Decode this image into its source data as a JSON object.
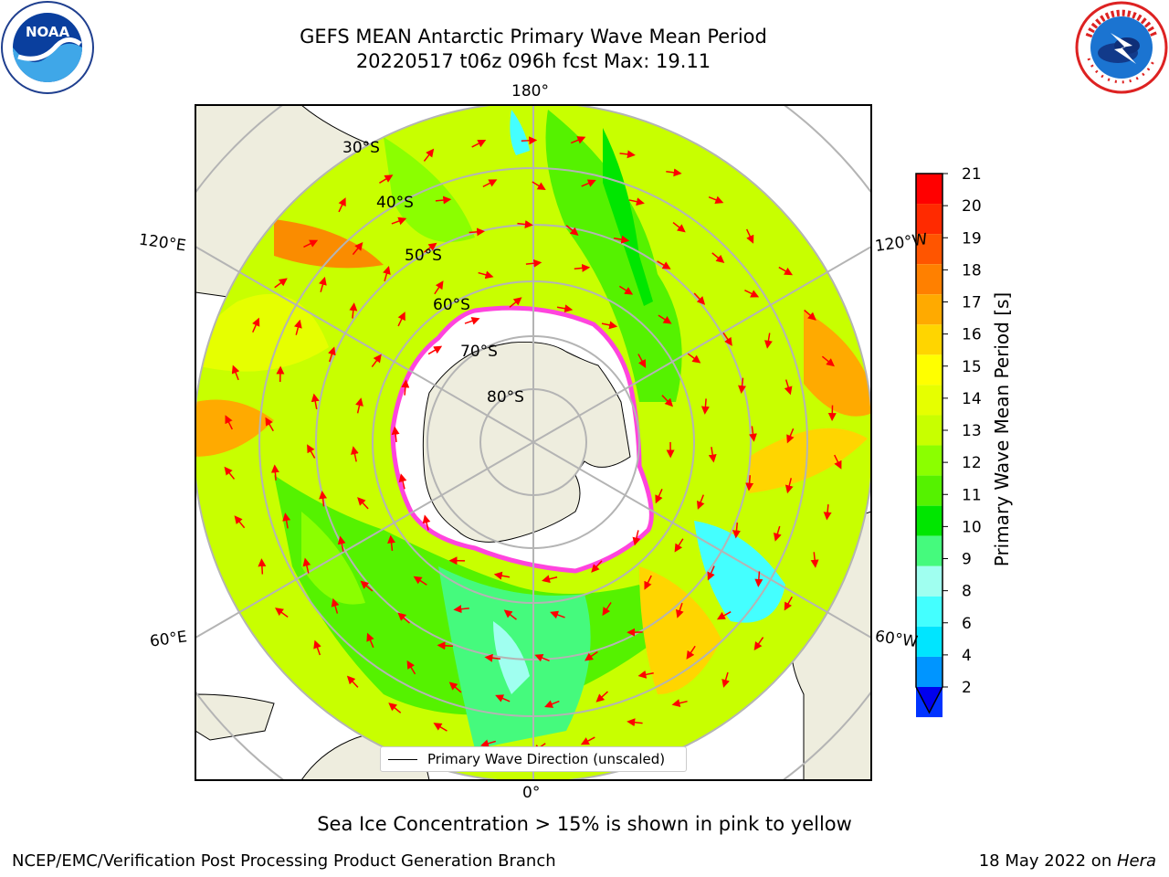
{
  "title": {
    "line1": "GEFS MEAN Antarctic Primary Wave Mean Period",
    "line2": "20220517 t06z 096h fcst   Max: 19.11"
  },
  "logos": {
    "left": "noaa-logo",
    "right": "national-weather-service-logo",
    "left_text": "NOAA",
    "right_text": "NATIONAL WEATHER SERVICE"
  },
  "map": {
    "projection": "south-polar-stereographic",
    "longitude_labels": {
      "top": "180°",
      "bottom": "0°",
      "upper_left": "120°E",
      "upper_right": "120°W",
      "lower_left": "60°E",
      "lower_right": "60°W"
    },
    "latitude_labels": [
      "30°S",
      "40°S",
      "50°S",
      "60°S",
      "70°S",
      "80°S"
    ],
    "legend_label": "Primary Wave Direction (unscaled)",
    "colors": {
      "land": "#eeedde",
      "sea_ice": "#ffffff",
      "arrow": "#ff0000",
      "grid": "#b4b4b4",
      "ice_edge": "#ff44dd"
    }
  },
  "colorbar": {
    "title": "Primary Wave Mean Period [s]",
    "ticks": [
      "21",
      "20",
      "19",
      "18",
      "17",
      "16",
      "15",
      "14",
      "13",
      "12",
      "11",
      "10",
      "9",
      "8",
      "6",
      "4",
      "2"
    ],
    "colors": [
      "#ff0000",
      "#ff2a00",
      "#ff5500",
      "#ff8000",
      "#ffaa00",
      "#ffd500",
      "#ffff00",
      "#e6ff00",
      "#c8ff00",
      "#8bff00",
      "#55f200",
      "#00e600",
      "#45fa7d",
      "#a0fff0",
      "#44ffff",
      "#00e5ff",
      "#0095ff",
      "#0033ff"
    ],
    "extend_color": "#0000ee"
  },
  "subtitle": "Sea Ice Concentration > 15% is shown in pink to yellow",
  "footer": {
    "left": "NCEP/EMC/Verification Post Processing Product Generation Branch",
    "date": "18 May 2022 on ",
    "machine": "Hera"
  }
}
